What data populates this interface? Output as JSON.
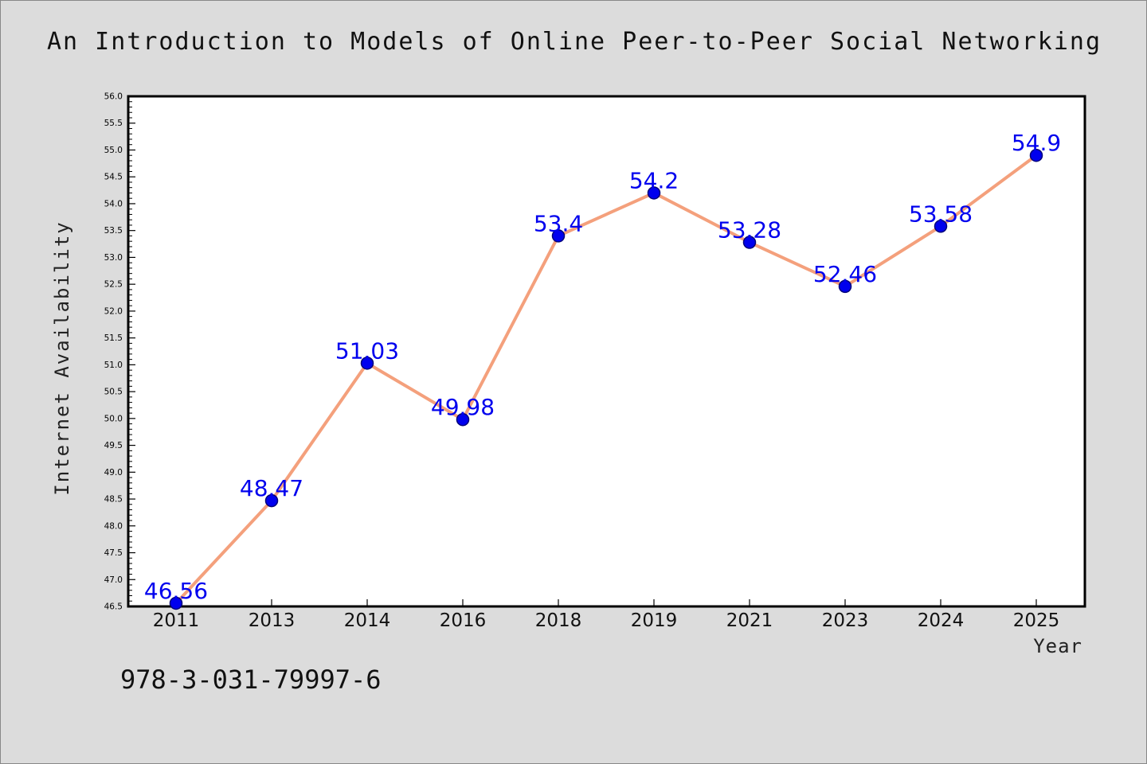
{
  "figure": {
    "title": "An Introduction to Models of Online Peer-to-Peer Social Networking",
    "footer": "978-3-031-79997-6"
  },
  "chart_data": {
    "type": "line",
    "title": "An Introduction to Models of Online Peer-to-Peer Social Networking",
    "xlabel": "Year",
    "ylabel": "Internet Availability",
    "categories": [
      "2011",
      "2013",
      "2014",
      "2016",
      "2018",
      "2019",
      "2021",
      "2023",
      "2024",
      "2025"
    ],
    "series": [
      {
        "values": [
          46.56,
          48.47,
          51.03,
          49.98,
          53.4,
          54.2,
          53.28,
          52.46,
          53.58,
          54.9
        ],
        "labels": [
          "46.56",
          "48.47",
          "51.03",
          "49.98",
          "53.4",
          "54.2",
          "53.28",
          "52.46",
          "53.58",
          "54.9"
        ]
      }
    ],
    "ylim": [
      46.5,
      56.0
    ],
    "yticks": [
      "46.5",
      "47.0",
      "47.5",
      "48.0",
      "48.5",
      "49.0",
      "49.5",
      "50.0",
      "50.5",
      "51.0",
      "51.5",
      "52.0",
      "52.5",
      "53.0",
      "53.5",
      "54.0",
      "54.5",
      "55.0",
      "55.5",
      "56.0"
    ],
    "grid": false,
    "legend": "none",
    "colors": {
      "line": "#f4a07c",
      "marker": "#0000ee",
      "data_label": "#0000ee",
      "background": "#dcdcdc",
      "plot_area": "#ffffff"
    }
  }
}
